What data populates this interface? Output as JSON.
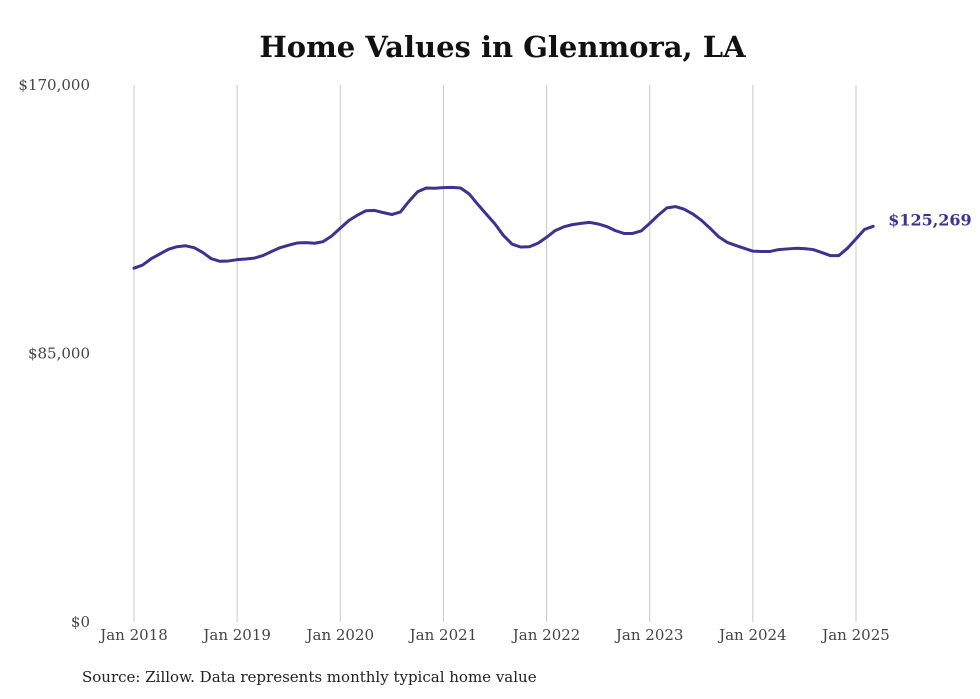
{
  "chart_data": {
    "type": "line",
    "title": "Home Values in Glenmora, LA",
    "xlabel": "",
    "ylabel": "",
    "ylim": [
      0,
      170000
    ],
    "y_ticks": [
      {
        "value": 0,
        "label": "$0"
      },
      {
        "value": 85000,
        "label": "$85,000"
      },
      {
        "value": 170000,
        "label": "$170,000"
      }
    ],
    "x_ticks": [
      {
        "value": 2018,
        "label": "Jan 2018"
      },
      {
        "value": 2019,
        "label": "Jan 2019"
      },
      {
        "value": 2020,
        "label": "Jan 2020"
      },
      {
        "value": 2021,
        "label": "Jan 2021"
      },
      {
        "value": 2022,
        "label": "Jan 2022"
      },
      {
        "value": 2023,
        "label": "Jan 2023"
      },
      {
        "value": 2024,
        "label": "Jan 2024"
      },
      {
        "value": 2025,
        "label": "Jan 2025"
      }
    ],
    "grid": "vertical",
    "line_color": "#3d3290",
    "series": [
      {
        "x": [
          "2018-01",
          "2018-02",
          "2018-03",
          "2018-04",
          "2018-05",
          "2018-06",
          "2018-07",
          "2018-08",
          "2018-09",
          "2018-10",
          "2018-11",
          "2018-12",
          "2019-01",
          "2019-02",
          "2019-03",
          "2019-04",
          "2019-05",
          "2019-06",
          "2019-07",
          "2019-08",
          "2019-09",
          "2019-10",
          "2019-11",
          "2019-12",
          "2020-01",
          "2020-02",
          "2020-03",
          "2020-04",
          "2020-05",
          "2020-06",
          "2020-07",
          "2020-08",
          "2020-09",
          "2020-10",
          "2020-11",
          "2020-12",
          "2021-01",
          "2021-02",
          "2021-03",
          "2021-04",
          "2021-05",
          "2021-06",
          "2021-07",
          "2021-08",
          "2021-09",
          "2021-10",
          "2021-11",
          "2021-12",
          "2022-01",
          "2022-02",
          "2022-03",
          "2022-04",
          "2022-05",
          "2022-06",
          "2022-07",
          "2022-08",
          "2022-09",
          "2022-10",
          "2022-11",
          "2022-12",
          "2023-01",
          "2023-02",
          "2023-03",
          "2023-04",
          "2023-05",
          "2023-06",
          "2023-07",
          "2023-08",
          "2023-09",
          "2023-10",
          "2023-11",
          "2023-12",
          "2024-01",
          "2024-02",
          "2024-03",
          "2024-04",
          "2024-05",
          "2024-06",
          "2024-07",
          "2024-08",
          "2024-09",
          "2024-10",
          "2024-11",
          "2024-12",
          "2025-01",
          "2025-02",
          "2025-03"
        ],
        "y": [
          112000,
          113000,
          115000,
          116500,
          118000,
          118800,
          119100,
          118500,
          117000,
          115000,
          114200,
          114300,
          114700,
          114900,
          115200,
          116000,
          117300,
          118500,
          119300,
          120000,
          120100,
          119900,
          120400,
          122200,
          124700,
          127100,
          128800,
          130200,
          130300,
          129600,
          129000,
          129800,
          133200,
          136200,
          137400,
          137300,
          137500,
          137600,
          137400,
          135500,
          132200,
          129100,
          126000,
          122300,
          119600,
          118700,
          118800,
          119900,
          121800,
          123900,
          125100,
          125800,
          126200,
          126500,
          126000,
          125200,
          123900,
          123000,
          123000,
          123800,
          126200,
          128800,
          131100,
          131500,
          130700,
          129200,
          127200,
          124700,
          122000,
          120200,
          119200,
          118300,
          117400,
          117300,
          117300,
          117900,
          118100,
          118300,
          118200,
          117900,
          117000,
          116000,
          116000,
          118300,
          121300,
          124300,
          125269
        ]
      }
    ],
    "end_label": "$125,269",
    "source_note": "Source: Zillow. Data represents monthly typical home value"
  }
}
